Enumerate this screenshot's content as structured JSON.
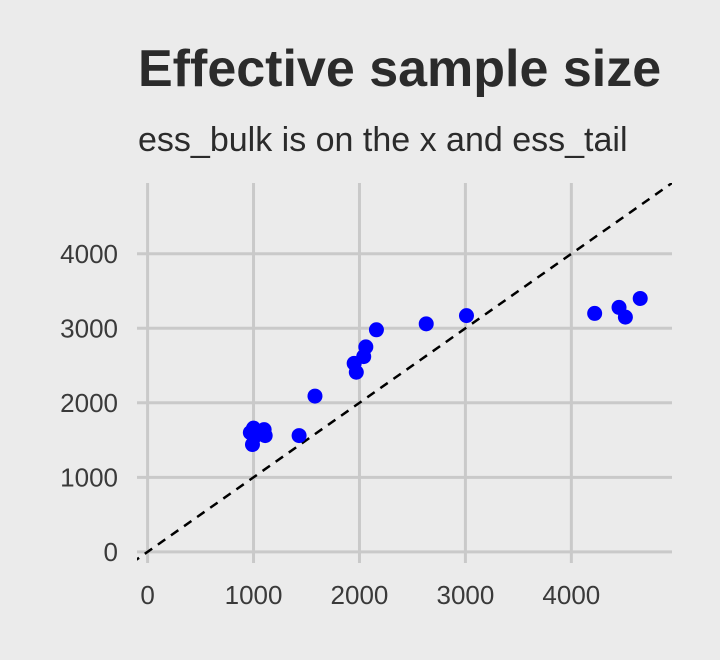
{
  "chart_data": {
    "type": "scatter",
    "title": "Effective sample size",
    "subtitle": "ess_bulk is on the x and ess_tail",
    "xlabel": "",
    "ylabel": "",
    "xlim": [
      -100,
      4950
    ],
    "ylim": [
      -150,
      4950
    ],
    "x_ticks": [
      0,
      1000,
      2000,
      3000,
      4000
    ],
    "y_ticks": [
      0,
      1000,
      2000,
      3000,
      4000
    ],
    "x_tick_labels": [
      "0",
      "1000",
      "2000",
      "3000",
      "4000"
    ],
    "y_tick_labels": [
      "0",
      "1000",
      "2000",
      "3000",
      "4000"
    ],
    "grid": true,
    "reference_line": {
      "type": "identity",
      "style": "dashed",
      "color": "#000000"
    },
    "point_color": "#0000ff",
    "points": [
      {
        "x": 970,
        "y": 1600
      },
      {
        "x": 1000,
        "y": 1660
      },
      {
        "x": 990,
        "y": 1440
      },
      {
        "x": 1020,
        "y": 1560
      },
      {
        "x": 1100,
        "y": 1640
      },
      {
        "x": 1110,
        "y": 1560
      },
      {
        "x": 1430,
        "y": 1560
      },
      {
        "x": 1580,
        "y": 2090
      },
      {
        "x": 1950,
        "y": 2530
      },
      {
        "x": 1970,
        "y": 2410
      },
      {
        "x": 2040,
        "y": 2620
      },
      {
        "x": 2060,
        "y": 2750
      },
      {
        "x": 2160,
        "y": 2980
      },
      {
        "x": 2630,
        "y": 3060
      },
      {
        "x": 3010,
        "y": 3170
      },
      {
        "x": 4220,
        "y": 3200
      },
      {
        "x": 4450,
        "y": 3280
      },
      {
        "x": 4510,
        "y": 3150
      },
      {
        "x": 4650,
        "y": 3400
      }
    ]
  }
}
